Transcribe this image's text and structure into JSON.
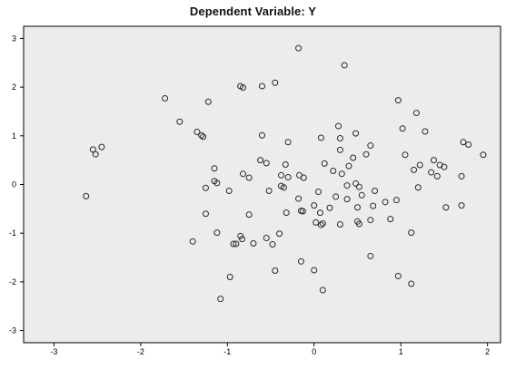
{
  "chart_data": {
    "type": "scatter",
    "title": "Dependent Variable: Y",
    "xlabel": "",
    "ylabel": "",
    "xlim": [
      -3.35,
      2.15
    ],
    "ylim": [
      -3.25,
      3.25
    ],
    "xticks": [
      -3,
      -2,
      -1,
      0,
      1,
      2
    ],
    "yticks": [
      -3,
      -2,
      -1,
      0,
      1,
      2,
      3
    ],
    "grid": false,
    "legend": "none",
    "colors": {
      "plot_background": "#ececec",
      "marker_stroke": "#2a2a2a",
      "frame": "#000000"
    },
    "marker": "open-circle",
    "points": [
      {
        "x": -2.63,
        "y": -0.24
      },
      {
        "x": -2.55,
        "y": 0.72
      },
      {
        "x": -2.52,
        "y": 0.62
      },
      {
        "x": -2.45,
        "y": 0.77
      },
      {
        "x": -1.72,
        "y": 1.77
      },
      {
        "x": -1.55,
        "y": 1.29
      },
      {
        "x": -1.4,
        "y": -1.17
      },
      {
        "x": -1.35,
        "y": 1.08
      },
      {
        "x": -1.3,
        "y": 1.01
      },
      {
        "x": -1.28,
        "y": 0.98
      },
      {
        "x": -1.25,
        "y": -0.07
      },
      {
        "x": -1.25,
        "y": -0.6
      },
      {
        "x": -1.22,
        "y": 1.7
      },
      {
        "x": -1.15,
        "y": 0.33
      },
      {
        "x": -1.15,
        "y": 0.07
      },
      {
        "x": -1.12,
        "y": 0.03
      },
      {
        "x": -1.12,
        "y": -0.99
      },
      {
        "x": -1.08,
        "y": -2.35
      },
      {
        "x": -0.98,
        "y": -0.13
      },
      {
        "x": -0.97,
        "y": -1.9
      },
      {
        "x": -0.93,
        "y": -1.22
      },
      {
        "x": -0.9,
        "y": -1.22
      },
      {
        "x": -0.85,
        "y": -1.06
      },
      {
        "x": -0.85,
        "y": 2.02
      },
      {
        "x": -0.83,
        "y": -1.12
      },
      {
        "x": -0.82,
        "y": 1.99
      },
      {
        "x": -0.82,
        "y": 0.22
      },
      {
        "x": -0.75,
        "y": 0.14
      },
      {
        "x": -0.75,
        "y": -0.62
      },
      {
        "x": -0.7,
        "y": -1.21
      },
      {
        "x": -0.62,
        "y": 0.5
      },
      {
        "x": -0.6,
        "y": 1.01
      },
      {
        "x": -0.6,
        "y": 2.02
      },
      {
        "x": -0.55,
        "y": 0.44
      },
      {
        "x": -0.55,
        "y": -1.1
      },
      {
        "x": -0.52,
        "y": -0.13
      },
      {
        "x": -0.48,
        "y": -1.23
      },
      {
        "x": -0.45,
        "y": 2.09
      },
      {
        "x": -0.45,
        "y": -1.77
      },
      {
        "x": -0.4,
        "y": -1.01
      },
      {
        "x": -0.38,
        "y": 0.19
      },
      {
        "x": -0.38,
        "y": -0.03
      },
      {
        "x": -0.35,
        "y": -0.06
      },
      {
        "x": -0.33,
        "y": 0.41
      },
      {
        "x": -0.32,
        "y": -0.58
      },
      {
        "x": -0.3,
        "y": 0.87
      },
      {
        "x": -0.3,
        "y": 0.15
      },
      {
        "x": -0.18,
        "y": 2.8
      },
      {
        "x": -0.18,
        "y": -0.29
      },
      {
        "x": -0.17,
        "y": 0.19
      },
      {
        "x": -0.15,
        "y": -0.54
      },
      {
        "x": -0.15,
        "y": -1.58
      },
      {
        "x": -0.13,
        "y": -0.55
      },
      {
        "x": -0.12,
        "y": 0.14
      },
      {
        "x": 0.0,
        "y": -0.43
      },
      {
        "x": 0.0,
        "y": -1.76
      },
      {
        "x": 0.02,
        "y": -0.78
      },
      {
        "x": 0.05,
        "y": -0.15
      },
      {
        "x": 0.07,
        "y": -0.58
      },
      {
        "x": 0.08,
        "y": 0.96
      },
      {
        "x": 0.08,
        "y": -0.83
      },
      {
        "x": 0.1,
        "y": -0.8
      },
      {
        "x": 0.1,
        "y": -2.17
      },
      {
        "x": 0.12,
        "y": 0.43
      },
      {
        "x": 0.18,
        "y": -0.48
      },
      {
        "x": 0.22,
        "y": 0.28
      },
      {
        "x": 0.25,
        "y": -0.25
      },
      {
        "x": 0.28,
        "y": 1.2
      },
      {
        "x": 0.3,
        "y": 0.95
      },
      {
        "x": 0.3,
        "y": 0.71
      },
      {
        "x": 0.3,
        "y": -0.82
      },
      {
        "x": 0.32,
        "y": 0.22
      },
      {
        "x": 0.35,
        "y": 2.45
      },
      {
        "x": 0.38,
        "y": -0.3
      },
      {
        "x": 0.38,
        "y": -0.02
      },
      {
        "x": 0.4,
        "y": 0.38
      },
      {
        "x": 0.45,
        "y": 0.55
      },
      {
        "x": 0.48,
        "y": 1.05
      },
      {
        "x": 0.48,
        "y": 0.02
      },
      {
        "x": 0.5,
        "y": -0.47
      },
      {
        "x": 0.5,
        "y": -0.76
      },
      {
        "x": 0.52,
        "y": -0.05
      },
      {
        "x": 0.52,
        "y": -0.81
      },
      {
        "x": 0.55,
        "y": -0.22
      },
      {
        "x": 0.6,
        "y": 0.62
      },
      {
        "x": 0.65,
        "y": 0.8
      },
      {
        "x": 0.65,
        "y": -0.73
      },
      {
        "x": 0.65,
        "y": -1.47
      },
      {
        "x": 0.68,
        "y": -0.44
      },
      {
        "x": 0.7,
        "y": -0.13
      },
      {
        "x": 0.82,
        "y": -0.36
      },
      {
        "x": 0.88,
        "y": -0.71
      },
      {
        "x": 0.95,
        "y": -0.32
      },
      {
        "x": 0.97,
        "y": 1.73
      },
      {
        "x": 0.97,
        "y": -1.88
      },
      {
        "x": 1.02,
        "y": 1.15
      },
      {
        "x": 1.05,
        "y": 0.61
      },
      {
        "x": 1.12,
        "y": -0.99
      },
      {
        "x": 1.12,
        "y": -2.04
      },
      {
        "x": 1.15,
        "y": 0.3
      },
      {
        "x": 1.18,
        "y": 1.47
      },
      {
        "x": 1.2,
        "y": -0.06
      },
      {
        "x": 1.22,
        "y": 0.4
      },
      {
        "x": 1.28,
        "y": 1.09
      },
      {
        "x": 1.35,
        "y": 0.25
      },
      {
        "x": 1.38,
        "y": 0.5
      },
      {
        "x": 1.42,
        "y": 0.17
      },
      {
        "x": 1.45,
        "y": 0.4
      },
      {
        "x": 1.5,
        "y": 0.36
      },
      {
        "x": 1.52,
        "y": -0.47
      },
      {
        "x": 1.7,
        "y": 0.17
      },
      {
        "x": 1.7,
        "y": -0.43
      },
      {
        "x": 1.72,
        "y": 0.87
      },
      {
        "x": 1.78,
        "y": 0.82
      },
      {
        "x": 1.95,
        "y": 0.61
      }
    ]
  }
}
